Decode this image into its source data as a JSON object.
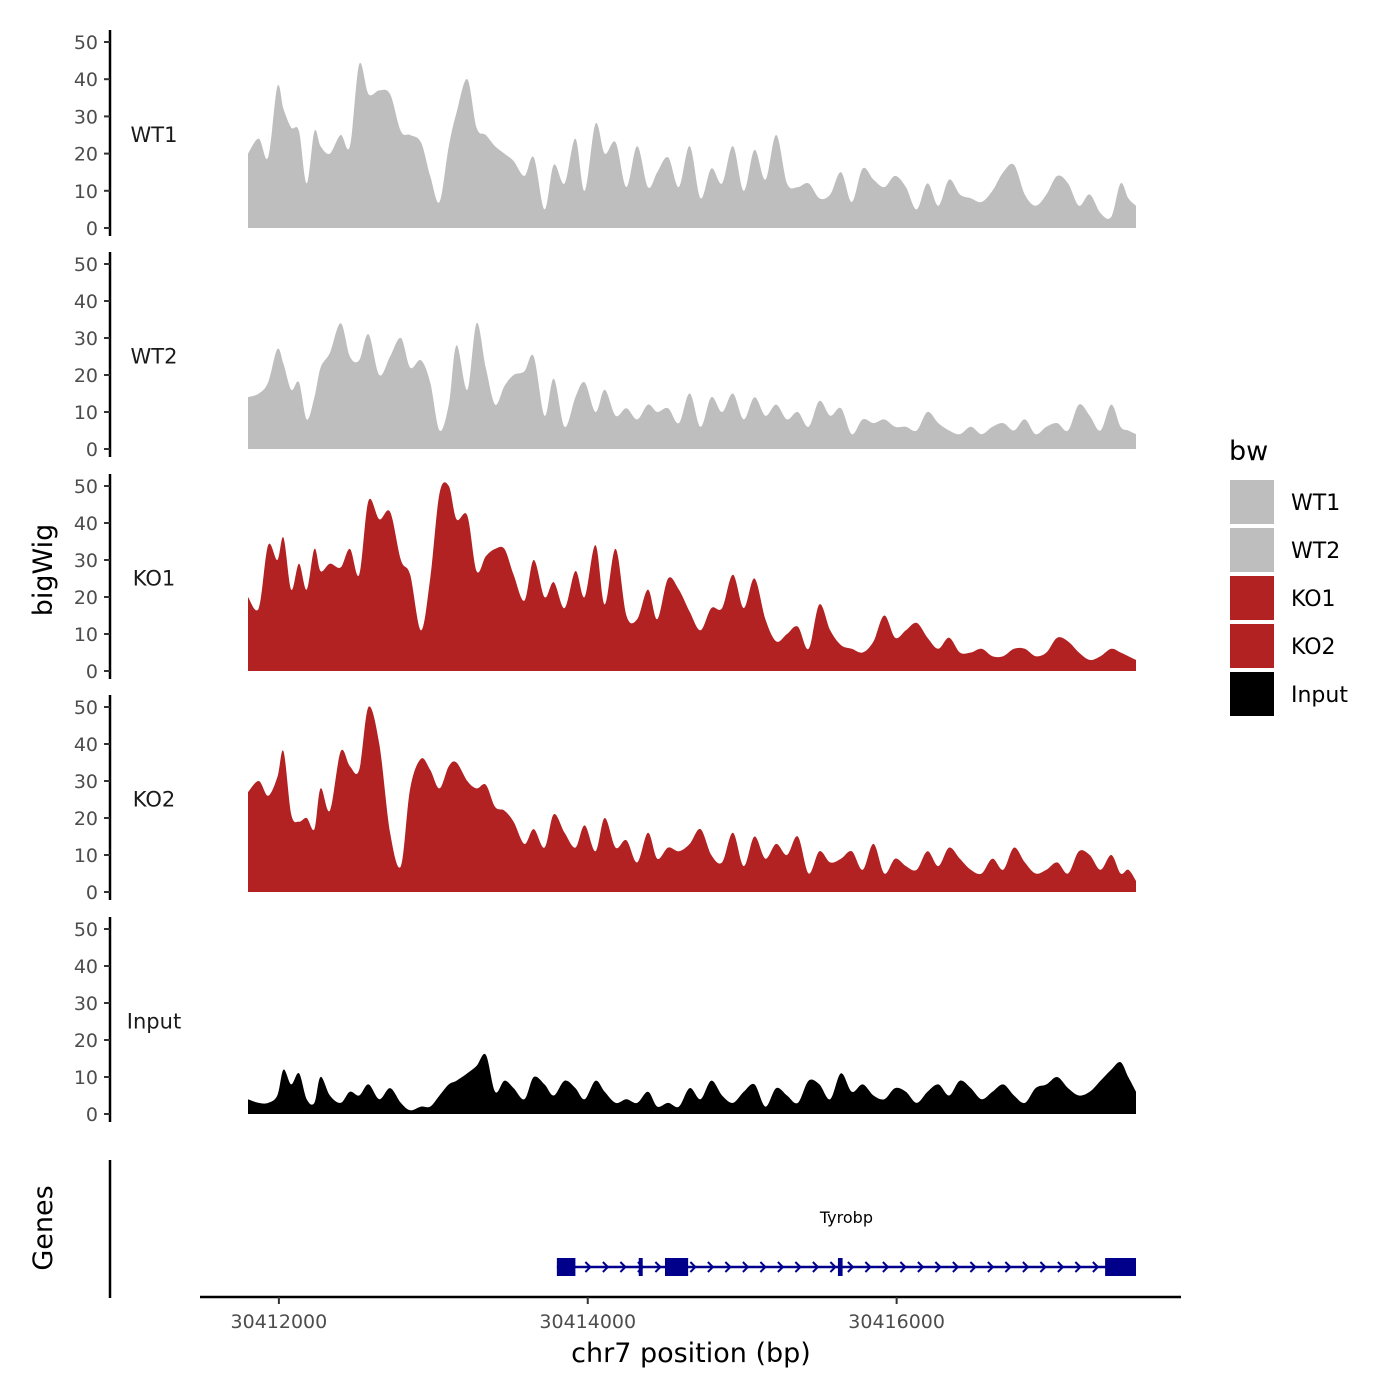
{
  "chart_data": {
    "type": "area",
    "y_axis_title": "bigWig",
    "x_axis_title": "chr7 position (bp)",
    "x_range": [
      30411800,
      30417550
    ],
    "x_ticks": [
      30412000,
      30414000,
      30416000
    ],
    "x_tick_labels": [
      "30412000",
      "30414000",
      "30416000"
    ],
    "ylim": [
      0,
      50
    ],
    "y_ticks": [
      0,
      10,
      20,
      30,
      40,
      50
    ],
    "y_tick_labels": [
      "0",
      "10",
      "20",
      "30",
      "40",
      "50"
    ],
    "legend": {
      "title": "bw",
      "entries": [
        {
          "label": "WT1",
          "color": "#bebebe"
        },
        {
          "label": "WT2",
          "color": "#bebebe"
        },
        {
          "label": "KO1",
          "color": "#b22222"
        },
        {
          "label": "KO2",
          "color": "#b22222"
        },
        {
          "label": "Input",
          "color": "#000000"
        }
      ]
    },
    "series": [
      {
        "name": "WT1",
        "color": "#bebebe",
        "x": [
          30411800,
          30411870,
          30411930,
          30411990,
          30412030,
          30412080,
          30412130,
          30412180,
          30412230,
          30412270,
          30412330,
          30412400,
          30412460,
          30412520,
          30412580,
          30412650,
          30412720,
          30412790,
          30412850,
          30412920,
          30412980,
          30413040,
          30413100,
          30413150,
          30413220,
          30413280,
          30413340,
          30413400,
          30413460,
          30413520,
          30413590,
          30413650,
          30413720,
          30413780,
          30413850,
          30413920,
          30413980,
          30414050,
          30414110,
          30414180,
          30414250,
          30414320,
          30414390,
          30414450,
          30414520,
          30414590,
          30414660,
          30414730,
          30414800,
          30414870,
          30414940,
          30415010,
          30415080,
          30415150,
          30415220,
          30415290,
          30415360,
          30415430,
          30415500,
          30415570,
          30415640,
          30415710,
          30415780,
          30415850,
          30415920,
          30415990,
          30416060,
          30416130,
          30416200,
          30416270,
          30416340,
          30416410,
          30416480,
          30416550,
          30416620,
          30416690,
          30416760,
          30416830,
          30416900,
          30416970,
          30417040,
          30417110,
          30417180,
          30417250,
          30417320,
          30417390,
          30417450,
          30417500,
          30417550
        ],
        "values": [
          20,
          24,
          19,
          38,
          32,
          27,
          26,
          12,
          26,
          22,
          20,
          25,
          22,
          44,
          36,
          37,
          36,
          26,
          25,
          23,
          14,
          7,
          22,
          31,
          40,
          27,
          25,
          22,
          20,
          18,
          14,
          19,
          5,
          17,
          12,
          24,
          10,
          28,
          20,
          23,
          11,
          22,
          11,
          15,
          19,
          11,
          22,
          8,
          16,
          12,
          22,
          10,
          21,
          13,
          25,
          12,
          11,
          12,
          8,
          9,
          15,
          7,
          16,
          13,
          11,
          14,
          11,
          5,
          12,
          6,
          13,
          9,
          8,
          7,
          10,
          15,
          17,
          9,
          6,
          9,
          14,
          12,
          6,
          9,
          4,
          3,
          12,
          8,
          6
        ]
      },
      {
        "name": "WT2",
        "color": "#bebebe",
        "x": [
          30411800,
          30411870,
          30411930,
          30411990,
          30412030,
          30412080,
          30412130,
          30412180,
          30412230,
          30412270,
          30412330,
          30412400,
          30412460,
          30412520,
          30412580,
          30412650,
          30412720,
          30412790,
          30412850,
          30412920,
          30412980,
          30413040,
          30413100,
          30413150,
          30413220,
          30413280,
          30413340,
          30413400,
          30413460,
          30413520,
          30413590,
          30413650,
          30413720,
          30413780,
          30413850,
          30413920,
          30413980,
          30414050,
          30414110,
          30414180,
          30414250,
          30414320,
          30414390,
          30414450,
          30414520,
          30414590,
          30414660,
          30414730,
          30414800,
          30414870,
          30414940,
          30415010,
          30415080,
          30415150,
          30415220,
          30415290,
          30415360,
          30415430,
          30415500,
          30415570,
          30415640,
          30415710,
          30415780,
          30415850,
          30415920,
          30415990,
          30416060,
          30416130,
          30416200,
          30416270,
          30416340,
          30416410,
          30416480,
          30416550,
          30416620,
          30416690,
          30416760,
          30416830,
          30416900,
          30416970,
          30417040,
          30417110,
          30417180,
          30417250,
          30417320,
          30417390,
          30417450,
          30417500,
          30417550
        ],
        "values": [
          14,
          15,
          18,
          27,
          23,
          16,
          18,
          8,
          14,
          22,
          26,
          34,
          25,
          24,
          31,
          20,
          25,
          30,
          22,
          24,
          18,
          5,
          12,
          28,
          16,
          34,
          22,
          12,
          17,
          20,
          21,
          25,
          9,
          19,
          6,
          14,
          18,
          10,
          16,
          9,
          11,
          8,
          12,
          10,
          11,
          7,
          15,
          6,
          14,
          10,
          15,
          8,
          14,
          9,
          12,
          8,
          10,
          6,
          13,
          9,
          11,
          4,
          8,
          7,
          8,
          6,
          6,
          5,
          10,
          7,
          5,
          4,
          6,
          4,
          6,
          7,
          5,
          8,
          4,
          6,
          7,
          5,
          12,
          9,
          5,
          12,
          6,
          5,
          4
        ]
      },
      {
        "name": "KO1",
        "color": "#b22222",
        "x": [
          30411800,
          30411870,
          30411930,
          30411990,
          30412030,
          30412080,
          30412130,
          30412180,
          30412230,
          30412270,
          30412330,
          30412400,
          30412460,
          30412520,
          30412580,
          30412650,
          30412720,
          30412790,
          30412850,
          30412920,
          30412980,
          30413040,
          30413100,
          30413150,
          30413220,
          30413280,
          30413340,
          30413400,
          30413460,
          30413520,
          30413590,
          30413650,
          30413720,
          30413780,
          30413850,
          30413920,
          30413980,
          30414050,
          30414110,
          30414180,
          30414250,
          30414320,
          30414390,
          30414450,
          30414520,
          30414590,
          30414660,
          30414730,
          30414800,
          30414870,
          30414940,
          30415010,
          30415080,
          30415150,
          30415220,
          30415290,
          30415360,
          30415430,
          30415500,
          30415570,
          30415640,
          30415710,
          30415780,
          30415850,
          30415920,
          30415990,
          30416060,
          30416130,
          30416200,
          30416270,
          30416340,
          30416410,
          30416480,
          30416550,
          30416620,
          30416690,
          30416760,
          30416830,
          30416900,
          30416970,
          30417040,
          30417110,
          30417180,
          30417250,
          30417320,
          30417390,
          30417450,
          30417500,
          30417550
        ],
        "values": [
          20,
          17,
          34,
          30,
          36,
          22,
          29,
          22,
          33,
          27,
          29,
          28,
          33,
          26,
          46,
          41,
          43,
          30,
          26,
          11,
          25,
          48,
          50,
          41,
          42,
          27,
          31,
          33,
          33,
          26,
          19,
          30,
          20,
          24,
          17,
          27,
          20,
          34,
          18,
          33,
          15,
          14,
          22,
          14,
          25,
          22,
          16,
          11,
          17,
          17,
          26,
          17,
          25,
          14,
          8,
          10,
          12,
          6,
          18,
          11,
          7,
          6,
          5,
          8,
          15,
          9,
          11,
          13,
          9,
          6,
          9,
          5,
          5,
          6,
          4,
          4,
          6,
          6,
          4,
          5,
          9,
          8,
          5,
          3,
          4,
          6,
          5,
          4,
          3
        ]
      },
      {
        "name": "KO2",
        "color": "#b22222",
        "x": [
          30411800,
          30411870,
          30411930,
          30411990,
          30412030,
          30412080,
          30412130,
          30412180,
          30412230,
          30412270,
          30412330,
          30412400,
          30412460,
          30412520,
          30412580,
          30412650,
          30412720,
          30412790,
          30412850,
          30412920,
          30412980,
          30413040,
          30413100,
          30413150,
          30413220,
          30413280,
          30413340,
          30413400,
          30413460,
          30413520,
          30413590,
          30413650,
          30413720,
          30413780,
          30413850,
          30413920,
          30413980,
          30414050,
          30414110,
          30414180,
          30414250,
          30414320,
          30414390,
          30414450,
          30414520,
          30414590,
          30414660,
          30414730,
          30414800,
          30414870,
          30414940,
          30415010,
          30415080,
          30415150,
          30415220,
          30415290,
          30415360,
          30415430,
          30415500,
          30415570,
          30415640,
          30415710,
          30415780,
          30415850,
          30415920,
          30415990,
          30416060,
          30416130,
          30416200,
          30416270,
          30416340,
          30416410,
          30416480,
          30416550,
          30416620,
          30416690,
          30416760,
          30416830,
          30416900,
          30416970,
          30417040,
          30417110,
          30417180,
          30417250,
          30417320,
          30417390,
          30417450,
          30417500,
          30417550
        ],
        "values": [
          27,
          30,
          26,
          31,
          38,
          21,
          19,
          20,
          17,
          28,
          22,
          38,
          34,
          33,
          50,
          40,
          16,
          7,
          28,
          36,
          33,
          28,
          34,
          35,
          30,
          28,
          29,
          23,
          22,
          19,
          13,
          17,
          12,
          21,
          16,
          12,
          18,
          11,
          20,
          12,
          14,
          8,
          16,
          9,
          12,
          11,
          13,
          17,
          10,
          8,
          16,
          7,
          15,
          9,
          13,
          10,
          15,
          5,
          11,
          8,
          9,
          11,
          6,
          13,
          5,
          9,
          7,
          6,
          11,
          7,
          12,
          9,
          6,
          5,
          9,
          6,
          12,
          8,
          5,
          6,
          8,
          5,
          11,
          10,
          6,
          10,
          5,
          6,
          3
        ]
      },
      {
        "name": "Input",
        "color": "#000000",
        "x": [
          30411800,
          30411870,
          30411930,
          30411990,
          30412030,
          30412080,
          30412130,
          30412180,
          30412230,
          30412270,
          30412330,
          30412400,
          30412460,
          30412520,
          30412580,
          30412650,
          30412720,
          30412790,
          30412850,
          30412920,
          30412980,
          30413040,
          30413100,
          30413150,
          30413220,
          30413280,
          30413340,
          30413400,
          30413460,
          30413520,
          30413590,
          30413650,
          30413720,
          30413780,
          30413850,
          30413920,
          30413980,
          30414050,
          30414110,
          30414180,
          30414250,
          30414320,
          30414390,
          30414450,
          30414520,
          30414590,
          30414660,
          30414730,
          30414800,
          30414870,
          30414940,
          30415010,
          30415080,
          30415150,
          30415220,
          30415290,
          30415360,
          30415430,
          30415500,
          30415570,
          30415640,
          30415710,
          30415780,
          30415850,
          30415920,
          30415990,
          30416060,
          30416130,
          30416200,
          30416270,
          30416340,
          30416410,
          30416480,
          30416550,
          30416620,
          30416690,
          30416760,
          30416830,
          30416900,
          30416970,
          30417040,
          30417110,
          30417180,
          30417250,
          30417320,
          30417390,
          30417450,
          30417500,
          30417550
        ],
        "values": [
          4,
          3,
          3,
          5,
          12,
          8,
          11,
          4,
          3,
          10,
          5,
          3,
          6,
          5,
          8,
          4,
          7,
          3,
          1,
          2,
          2,
          5,
          8,
          9,
          11,
          13,
          16,
          6,
          9,
          7,
          4,
          10,
          8,
          5,
          9,
          7,
          4,
          9,
          6,
          3,
          4,
          3,
          6,
          2,
          3,
          2,
          7,
          4,
          9,
          5,
          3,
          6,
          8,
          2,
          7,
          5,
          3,
          9,
          8,
          4,
          11,
          6,
          8,
          5,
          4,
          7,
          6,
          3,
          6,
          8,
          5,
          9,
          7,
          4,
          6,
          8,
          5,
          3,
          7,
          8,
          10,
          7,
          5,
          6,
          9,
          12,
          14,
          10,
          6
        ]
      }
    ],
    "genes": {
      "track_label": "Genes",
      "name": "Tyrobp",
      "strand": "+",
      "start": 30413800,
      "end": 30417550,
      "exons": [
        [
          30413800,
          30413920
        ],
        [
          30414330,
          30414350
        ],
        [
          30414500,
          30414650
        ],
        [
          30415620,
          30415650
        ],
        [
          30417350,
          30417550
        ]
      ]
    }
  }
}
